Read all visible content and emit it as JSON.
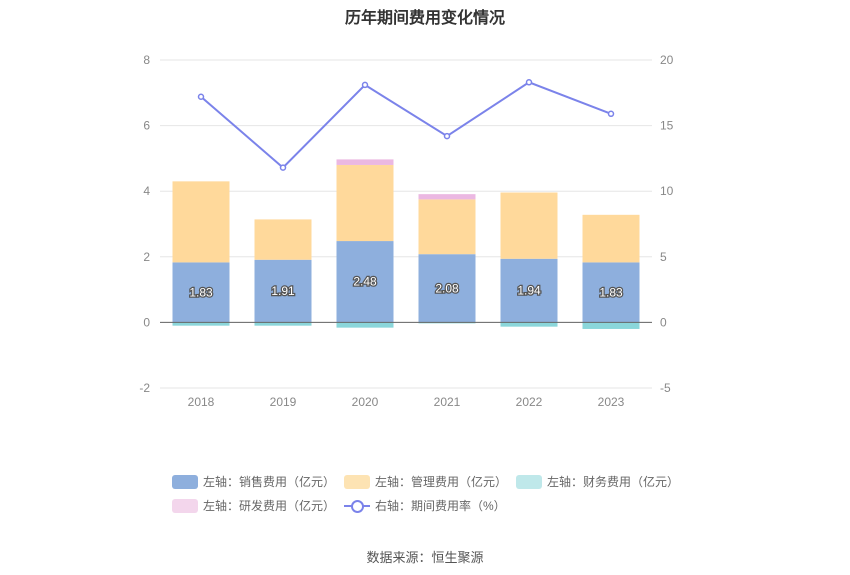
{
  "title": "历年期间费用变化情况",
  "source": "数据来源：恒生聚源",
  "legend": [
    {
      "key": "sales",
      "label": "左轴：销售费用（亿元）",
      "color": "#8eafdd",
      "kind": "bar"
    },
    {
      "key": "mgmt",
      "label": "左轴：管理费用（亿元）",
      "color": "#fde3b3",
      "kind": "bar"
    },
    {
      "key": "fin",
      "label": "左轴：财务费用（亿元）",
      "color": "#bfe8ea",
      "kind": "bar"
    },
    {
      "key": "rd",
      "label": "左轴：研发费用（亿元）",
      "color": "#f3d6ec",
      "kind": "bar"
    },
    {
      "key": "rate",
      "label": "右轴：期间费用率（%）",
      "color": "#7b83ea",
      "kind": "line"
    }
  ],
  "chart_data": {
    "type": "bar",
    "title": "历年期间费用变化情况",
    "categories": [
      "2018",
      "2019",
      "2020",
      "2021",
      "2022",
      "2023"
    ],
    "y_left": {
      "min": -2,
      "max": 8,
      "ticks": [
        "-2",
        "0",
        "2",
        "4",
        "6",
        "8"
      ]
    },
    "y_right": {
      "min": -5,
      "max": 20,
      "ticks": [
        "-5",
        "0",
        "5",
        "10",
        "15",
        "20"
      ]
    },
    "series": [
      {
        "name": "左轴：销售费用（亿元）",
        "axis": "left",
        "type": "bar",
        "color": "#8eafdd",
        "values": [
          1.83,
          1.91,
          2.48,
          2.08,
          1.94,
          1.83
        ],
        "labels": [
          "1.83",
          "1.91",
          "2.48",
          "2.08",
          "1.94",
          "1.83"
        ]
      },
      {
        "name": "左轴：管理费用（亿元）",
        "axis": "left",
        "type": "bar",
        "color": "#ffd99b",
        "values": [
          2.47,
          1.23,
          2.32,
          1.67,
          2.02,
          1.45
        ]
      },
      {
        "name": "左轴：财务费用（亿元）",
        "axis": "left",
        "type": "bar",
        "color": "#8ad6da",
        "values": [
          -0.1,
          -0.1,
          -0.16,
          -0.03,
          -0.13,
          -0.2
        ]
      },
      {
        "name": "左轴：研发费用（亿元）",
        "axis": "left",
        "type": "bar",
        "color": "#ebb8e2",
        "values": [
          0,
          0,
          0.17,
          0.16,
          0,
          0
        ]
      },
      {
        "name": "右轴：期间费用率（%）",
        "axis": "right",
        "type": "line",
        "color": "#7b83ea",
        "values": [
          17.2,
          11.8,
          18.1,
          14.2,
          18.3,
          15.9
        ]
      }
    ],
    "grid": true,
    "legend_position": "bottom"
  }
}
